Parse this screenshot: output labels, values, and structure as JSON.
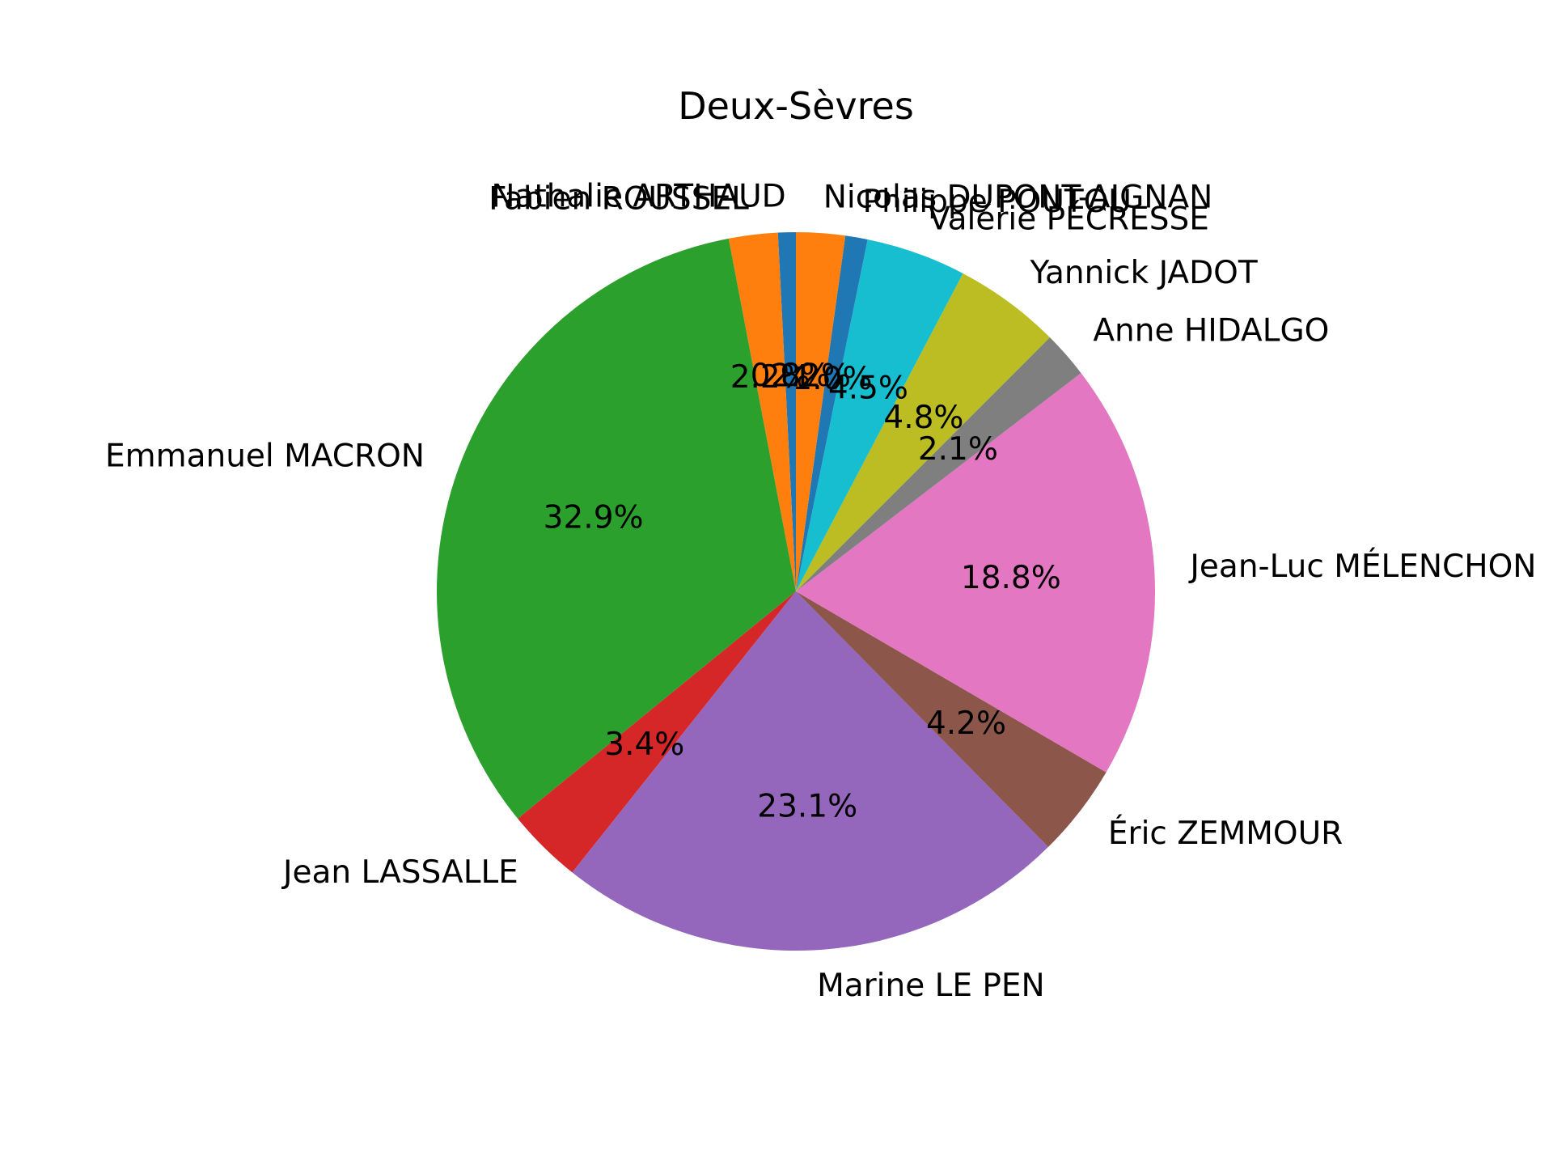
{
  "chart_data": {
    "type": "pie",
    "title": "Deux-Sèvres",
    "start_angle": 90,
    "direction": "counterclockwise",
    "slices": [
      {
        "label": "Nathalie ARTHAUD",
        "value": 0.8,
        "pct_label": "0.8%",
        "color": "#1f77b4"
      },
      {
        "label": "Fabien ROUSSEL",
        "value": 2.2,
        "pct_label": "2.2%",
        "color": "#ff7f0e"
      },
      {
        "label": "Emmanuel MACRON",
        "value": 32.9,
        "pct_label": "32.9%",
        "color": "#2ca02c"
      },
      {
        "label": "Jean LASSALLE",
        "value": 3.4,
        "pct_label": "3.4%",
        "color": "#d62728"
      },
      {
        "label": "Marine LE PEN",
        "value": 23.1,
        "pct_label": "23.1%",
        "color": "#9467bd"
      },
      {
        "label": "Éric ZEMMOUR",
        "value": 4.2,
        "pct_label": "4.2%",
        "color": "#8c564b"
      },
      {
        "label": "Jean-Luc MÉLENCHON",
        "value": 18.8,
        "pct_label": "18.8%",
        "color": "#e377c2"
      },
      {
        "label": "Anne HIDALGO",
        "value": 2.1,
        "pct_label": "2.1%",
        "color": "#7f7f7f"
      },
      {
        "label": "Yannick JADOT",
        "value": 4.8,
        "pct_label": "4.8%",
        "color": "#bcbd22"
      },
      {
        "label": "Valérie PÉCRESSE",
        "value": 4.5,
        "pct_label": "4.5%",
        "color": "#17becf"
      },
      {
        "label": "Philippe POUTOU",
        "value": 1.0,
        "pct_label": "1.0%",
        "color": "#1f77b4"
      },
      {
        "label": "Nicolas DUPONT-AIGNAN",
        "value": 2.2,
        "pct_label": "2.2%",
        "color": "#ff7f0e"
      }
    ]
  }
}
